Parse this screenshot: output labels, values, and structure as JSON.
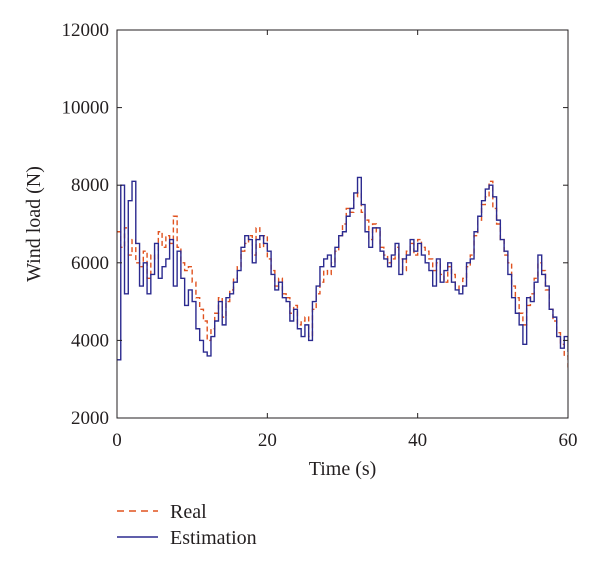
{
  "chart_data": {
    "type": "line",
    "title": "",
    "xlabel": "Time (s)",
    "ylabel": "Wind load (N)",
    "xlim": [
      0,
      60
    ],
    "ylim": [
      2000,
      12000
    ],
    "xticks": [
      0,
      20,
      40,
      60
    ],
    "yticks": [
      2000,
      4000,
      6000,
      8000,
      10000,
      12000
    ],
    "grid": false,
    "legend_position": "bottom-left-outside",
    "colors": {
      "Real": "#e0521f",
      "Estimation": "#2b2a8f",
      "axis": "#231f20"
    },
    "series": [
      {
        "name": "Real",
        "style": "dashed",
        "x": [
          0,
          0.5,
          1,
          1.5,
          2,
          2.5,
          3,
          3.5,
          4,
          4.5,
          5,
          5.5,
          6,
          6.5,
          7,
          7.5,
          8,
          8.5,
          9,
          9.5,
          10,
          10.5,
          11,
          11.5,
          12,
          12.5,
          13,
          13.5,
          14,
          14.5,
          15,
          15.5,
          16,
          16.5,
          17,
          17.5,
          18,
          18.5,
          19,
          19.5,
          20,
          20.5,
          21,
          21.5,
          22,
          22.5,
          23,
          23.5,
          24,
          24.5,
          25,
          25.5,
          26,
          26.5,
          27,
          27.5,
          28,
          28.5,
          29,
          29.5,
          30,
          30.5,
          31,
          31.5,
          32,
          32.5,
          33,
          33.5,
          34,
          34.5,
          35,
          35.5,
          36,
          36.5,
          37,
          37.5,
          38,
          38.5,
          39,
          39.5,
          40,
          40.5,
          41,
          41.5,
          42,
          42.5,
          43,
          43.5,
          44,
          44.5,
          45,
          45.5,
          46,
          46.5,
          47,
          47.5,
          48,
          48.5,
          49,
          49.5,
          50,
          50.5,
          51,
          51.5,
          52,
          52.5,
          53,
          53.5,
          54,
          54.5,
          55,
          55.5,
          56,
          56.5,
          57,
          57.5,
          58,
          58.5,
          59,
          59.5,
          60
        ],
        "y": [
          6800,
          6400,
          6900,
          6200,
          6600,
          6000,
          5900,
          6300,
          5600,
          6200,
          6100,
          6800,
          6400,
          6700,
          6500,
          7200,
          6400,
          6000,
          5800,
          5900,
          5500,
          5100,
          4800,
          4500,
          4000,
          4300,
          4700,
          5100,
          4600,
          5000,
          5300,
          5600,
          5900,
          6300,
          6500,
          6700,
          6200,
          6900,
          6400,
          6700,
          6100,
          5800,
          5400,
          5600,
          5200,
          5100,
          4700,
          4900,
          4400,
          4500,
          4600,
          4100,
          4800,
          5200,
          5500,
          5800,
          5700,
          6000,
          6300,
          6700,
          7000,
          7400,
          7300,
          7700,
          7800,
          7300,
          7100,
          6600,
          7000,
          6800,
          6400,
          6200,
          6000,
          6100,
          6400,
          6100,
          5800,
          6300,
          6500,
          6200,
          6600,
          6400,
          6300,
          6100,
          5800,
          6000,
          5700,
          5500,
          5900,
          5700,
          5400,
          5300,
          5600,
          5900,
          6200,
          6700,
          7100,
          7500,
          7700,
          8100,
          7400,
          7000,
          6600,
          6200,
          6000,
          5400,
          5100,
          4700,
          4400,
          4900,
          5200,
          5600,
          6000,
          5800,
          5300,
          4800,
          4500,
          4200,
          3900,
          3600,
          3300
        ]
      },
      {
        "name": "Estimation",
        "style": "solid",
        "x": [
          0,
          0.5,
          1,
          1.5,
          2,
          2.5,
          3,
          3.5,
          4,
          4.5,
          5,
          5.5,
          6,
          6.5,
          7,
          7.5,
          8,
          8.5,
          9,
          9.5,
          10,
          10.5,
          11,
          11.5,
          12,
          12.5,
          13,
          13.5,
          14,
          14.5,
          15,
          15.5,
          16,
          16.5,
          17,
          17.5,
          18,
          18.5,
          19,
          19.5,
          20,
          20.5,
          21,
          21.5,
          22,
          22.5,
          23,
          23.5,
          24,
          24.5,
          25,
          25.5,
          26,
          26.5,
          27,
          27.5,
          28,
          28.5,
          29,
          29.5,
          30,
          30.5,
          31,
          31.5,
          32,
          32.5,
          33,
          33.5,
          34,
          34.5,
          35,
          35.5,
          36,
          36.5,
          37,
          37.5,
          38,
          38.5,
          39,
          39.5,
          40,
          40.5,
          41,
          41.5,
          42,
          42.5,
          43,
          43.5,
          44,
          44.5,
          45,
          45.5,
          46,
          46.5,
          47,
          47.5,
          48,
          48.5,
          49,
          49.5,
          50,
          50.5,
          51,
          51.5,
          52,
          52.5,
          53,
          53.5,
          54,
          54.5,
          55,
          55.5,
          56,
          56.5,
          57,
          57.5,
          58,
          58.5,
          59,
          59.5,
          60
        ],
        "y": [
          3500,
          8000,
          5200,
          7600,
          8100,
          6500,
          5400,
          6000,
          5200,
          5700,
          6500,
          5600,
          5900,
          6100,
          6600,
          5400,
          6300,
          5600,
          4900,
          5300,
          5000,
          4300,
          4000,
          3700,
          3600,
          4100,
          4500,
          5000,
          4400,
          5100,
          5200,
          5500,
          5800,
          6400,
          6700,
          6600,
          6000,
          6600,
          6700,
          6500,
          6300,
          5700,
          5300,
          5500,
          5100,
          5000,
          4500,
          4800,
          4300,
          4100,
          4400,
          4000,
          5000,
          5400,
          5900,
          6100,
          6200,
          5900,
          6400,
          6700,
          6800,
          7200,
          7400,
          7800,
          8200,
          7500,
          6800,
          6400,
          6900,
          6900,
          6300,
          6100,
          5900,
          6200,
          6500,
          5700,
          6100,
          6200,
          6600,
          6300,
          6500,
          6200,
          6000,
          5800,
          5400,
          6100,
          5500,
          5800,
          6000,
          5500,
          5300,
          5200,
          5400,
          6000,
          6100,
          6800,
          7200,
          7600,
          7900,
          8000,
          7700,
          7100,
          6600,
          6300,
          5700,
          5100,
          4700,
          4400,
          3900,
          5100,
          5000,
          5500,
          6200,
          5700,
          5400,
          4800,
          4600,
          4100,
          3800,
          4100,
          3700
        ]
      }
    ]
  }
}
